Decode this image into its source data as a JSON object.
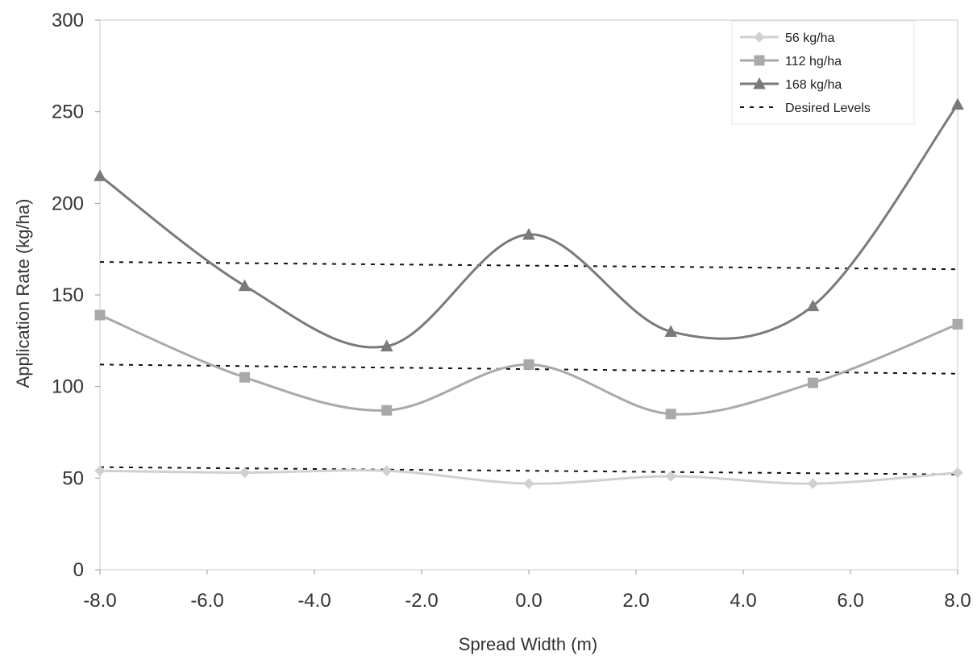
{
  "chart_data": {
    "type": "line",
    "title": "",
    "xlabel": "Spread Width (m)",
    "ylabel": "Application Rate (kg/ha)",
    "xlim": [
      -8,
      8
    ],
    "ylim": [
      0,
      300
    ],
    "x_ticks": [
      "-8.0",
      "-6.0",
      "-4.0",
      "-2.0",
      "0.0",
      "2.0",
      "4.0",
      "6.0",
      "8.0"
    ],
    "y_ticks": [
      "0",
      "50",
      "100",
      "150",
      "200",
      "250",
      "300"
    ],
    "grid": false,
    "legend_position": "top-right",
    "series": [
      {
        "name": "56 kg/ha",
        "marker": "diamond",
        "color": "#d0d0d0",
        "x": [
          -8.0,
          -5.3,
          -2.65,
          0.0,
          2.65,
          5.3,
          8.0
        ],
        "y": [
          54,
          53,
          54,
          47,
          51,
          47,
          53
        ]
      },
      {
        "name": "112 hg/ha",
        "marker": "square",
        "color": "#a9a9a9",
        "x": [
          -8.0,
          -5.3,
          -2.65,
          0.0,
          2.65,
          5.3,
          8.0
        ],
        "y": [
          139,
          105,
          87,
          112,
          85,
          102,
          134
        ]
      },
      {
        "name": "168 kg/ha",
        "marker": "triangle",
        "color": "#7a7a7a",
        "x": [
          -8.0,
          -5.3,
          -2.65,
          0.0,
          2.65,
          5.3,
          8.0
        ],
        "y": [
          215,
          155,
          122,
          183,
          130,
          144,
          254
        ]
      },
      {
        "name": "Desired Levels",
        "style": "dashed",
        "color": "#111111",
        "lines": [
          {
            "x": [
              -8.0,
              8.0
            ],
            "y": [
              56,
              52
            ]
          },
          {
            "x": [
              -8.0,
              8.0
            ],
            "y": [
              112,
              107
            ]
          },
          {
            "x": [
              -8.0,
              8.0
            ],
            "y": [
              168,
              164
            ]
          }
        ]
      }
    ]
  }
}
